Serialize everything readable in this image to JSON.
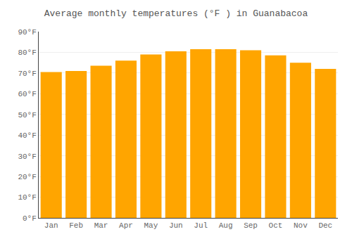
{
  "chart_data": {
    "type": "bar",
    "title": "Average monthly temperatures (°F ) in Guanabacoa",
    "categories": [
      "Jan",
      "Feb",
      "Mar",
      "Apr",
      "May",
      "Jun",
      "Jul",
      "Aug",
      "Sep",
      "Oct",
      "Nov",
      "Dec"
    ],
    "values": [
      70.5,
      71.0,
      73.5,
      76.0,
      79.0,
      80.5,
      81.5,
      81.5,
      81.0,
      78.5,
      75.0,
      72.0
    ],
    "color": "#FFA500",
    "ylim": [
      0,
      90
    ],
    "yticks": [
      {
        "value": 0,
        "label": "0°F"
      },
      {
        "value": 10,
        "label": "10°F"
      },
      {
        "value": 20,
        "label": "20°F"
      },
      {
        "value": 30,
        "label": "30°F"
      },
      {
        "value": 40,
        "label": "40°F"
      },
      {
        "value": 50,
        "label": "50°F"
      },
      {
        "value": 60,
        "label": "60°F"
      },
      {
        "value": 70,
        "label": "70°F"
      },
      {
        "value": 80,
        "label": "80°F"
      },
      {
        "value": 90,
        "label": "90°F"
      }
    ],
    "grid": true
  }
}
